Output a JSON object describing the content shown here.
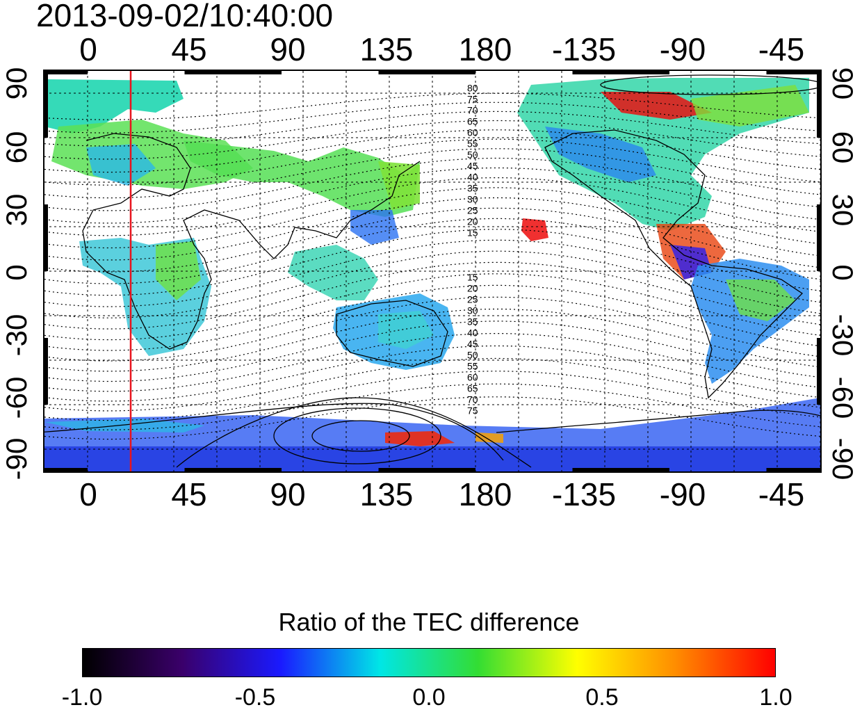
{
  "title": "2013-09-02/10:40:00",
  "axes": {
    "lon_ticks": [
      "0",
      "45",
      "90",
      "135",
      "180",
      "-135",
      "-90",
      "-45"
    ],
    "lat_ticks": [
      "90",
      "60",
      "30",
      "0",
      "-30",
      "-60",
      "-90"
    ],
    "lon_range": [
      -20,
      340
    ],
    "lat_range": [
      -90,
      90
    ],
    "grid": true
  },
  "map": {
    "marker_longitude": 20,
    "marker_color": "#e8141e",
    "magnetic_contour_labels_north": [
      "80",
      "75",
      "70",
      "65",
      "60",
      "55",
      "50",
      "45",
      "40",
      "35",
      "30",
      "25",
      "20",
      "15"
    ],
    "magnetic_contour_labels_south": [
      "15",
      "20",
      "25",
      "30",
      "35",
      "40",
      "45",
      "50",
      "55",
      "60",
      "65",
      "70",
      "75"
    ]
  },
  "colorbar": {
    "title": "Ratio of the TEC difference",
    "min": -1.0,
    "max": 1.0,
    "ticks": [
      "-1.0",
      "-0.5",
      "0.0",
      "0.5",
      "1.0"
    ],
    "colors": [
      "#000000",
      "#3a006a",
      "#1a1aff",
      "#00e6e6",
      "#33dd33",
      "#ffff00",
      "#ff8c00",
      "#ff0000"
    ]
  }
}
